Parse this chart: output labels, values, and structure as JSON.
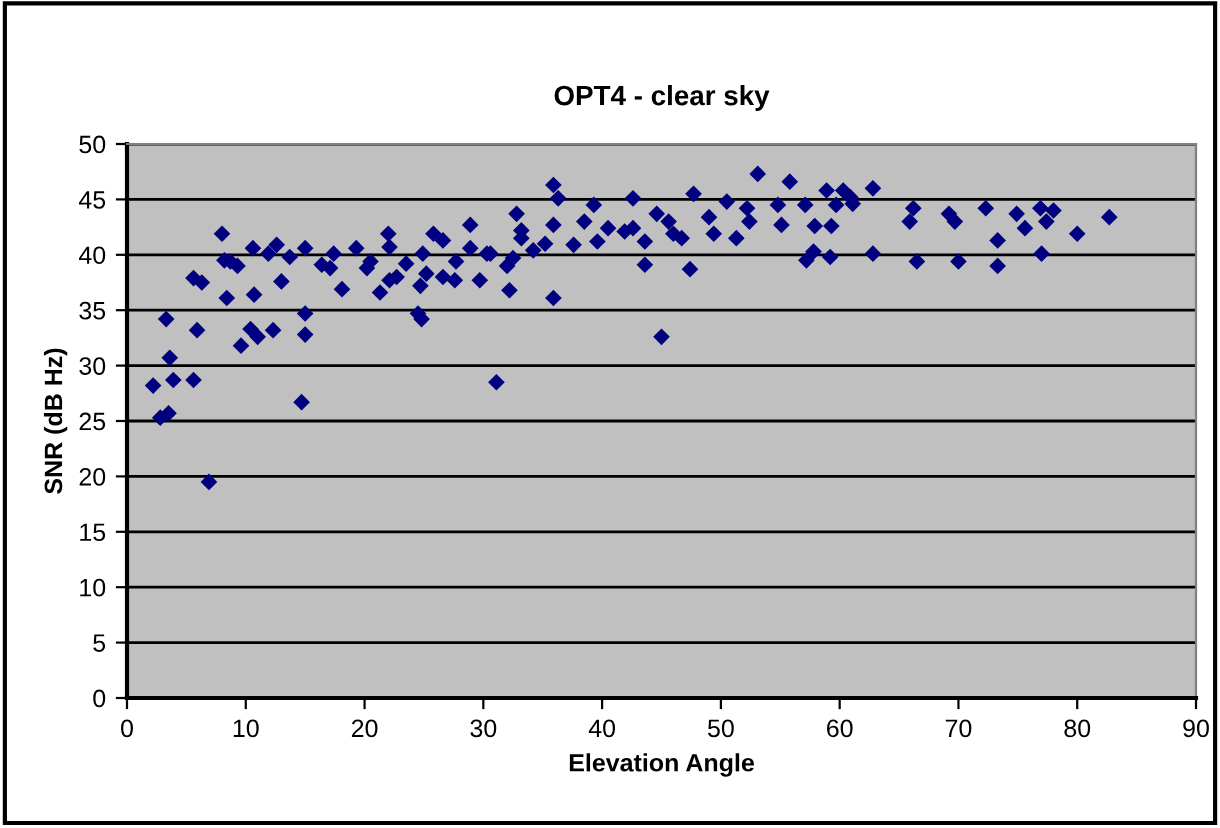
{
  "chart_data": {
    "type": "scatter",
    "title": "OPT4 - clear sky",
    "xlabel": "Elevation Angle",
    "ylabel": "SNR (dB Hz)",
    "xlim": [
      0,
      90
    ],
    "xticks": [
      0,
      10,
      20,
      30,
      40,
      50,
      60,
      70,
      80,
      90
    ],
    "ylim": [
      0,
      50
    ],
    "yticks": [
      0,
      5,
      10,
      15,
      20,
      25,
      30,
      35,
      40,
      45,
      50
    ],
    "grid": "y",
    "marker": "diamond",
    "series": [
      {
        "color": "#000080",
        "x": [
          2.2,
          2.8,
          3.5,
          3.3,
          3.6,
          3.9,
          5.6,
          5.6,
          6.3,
          5.9,
          6.9,
          8.0,
          8.2,
          8.7,
          9.3,
          8.4,
          9.6,
          10.4,
          11.0,
          10.6,
          10.7,
          11.9,
          12.6,
          12.3,
          13.0,
          13.7,
          15.0,
          15.0,
          15.0,
          14.7,
          16.4,
          17.1,
          17.4,
          18.1,
          19.3,
          20.2,
          20.5,
          21.3,
          22.0,
          22.1,
          22.1,
          22.7,
          23.5,
          24.5,
          24.8,
          24.7,
          24.9,
          25.2,
          25.8,
          26.6,
          26.6,
          27.6,
          27.7,
          28.9,
          28.9,
          29.7,
          30.3,
          30.6,
          31.1,
          32.2,
          32.0,
          32.5,
          32.8,
          33.2,
          33.2,
          34.2,
          35.2,
          35.9,
          36.3,
          35.9,
          35.9,
          37.6,
          38.5,
          39.3,
          39.6,
          40.5,
          41.9,
          42.6,
          42.6,
          43.6,
          43.6,
          44.6,
          45.0,
          45.6,
          46.0,
          46.7,
          47.4,
          47.7,
          49.0,
          49.4,
          50.5,
          51.3,
          52.2,
          52.4,
          53.1,
          54.8,
          55.1,
          55.8,
          57.1,
          57.2,
          57.8,
          57.9,
          58.9,
          59.2,
          59.3,
          59.7,
          60.3,
          60.9,
          61.1,
          62.8,
          62.8,
          66.2,
          65.9,
          66.5,
          69.2,
          69.7,
          70.0,
          72.3,
          73.3,
          73.3,
          74.9,
          75.6,
          76.9,
          77.0,
          77.4,
          78.0,
          80.0,
          82.7
        ],
        "values": [
          28.2,
          25.3,
          25.7,
          34.2,
          30.7,
          28.7,
          28.7,
          37.9,
          37.5,
          33.2,
          19.5,
          41.9,
          39.5,
          39.4,
          39.0,
          36.1,
          31.8,
          33.3,
          32.6,
          40.6,
          36.4,
          40.1,
          40.9,
          33.2,
          37.6,
          39.8,
          40.6,
          34.7,
          32.8,
          26.7,
          39.1,
          38.8,
          40.1,
          36.9,
          40.6,
          38.8,
          39.4,
          36.6,
          41.9,
          40.7,
          37.7,
          38.0,
          39.2,
          34.7,
          34.2,
          37.2,
          40.1,
          38.3,
          41.9,
          41.3,
          38.0,
          37.7,
          39.4,
          42.7,
          40.6,
          37.7,
          40.1,
          40.1,
          28.5,
          36.8,
          39.0,
          39.7,
          43.7,
          42.2,
          41.5,
          40.4,
          41.0,
          46.3,
          45.1,
          42.7,
          36.1,
          40.9,
          43.0,
          44.5,
          41.2,
          42.4,
          42.1,
          45.1,
          42.4,
          41.2,
          39.1,
          43.7,
          32.6,
          43.0,
          41.9,
          41.5,
          38.7,
          45.5,
          43.4,
          41.9,
          44.8,
          41.5,
          44.2,
          43.0,
          47.3,
          44.5,
          42.7,
          46.6,
          44.5,
          39.5,
          40.3,
          42.6,
          45.8,
          39.8,
          42.6,
          44.5,
          45.8,
          45.2,
          44.6,
          46.0,
          40.1,
          44.2,
          43.0,
          39.4,
          43.7,
          43.0,
          39.4,
          44.2,
          41.3,
          39.0,
          43.7,
          42.4,
          44.2,
          40.1,
          43.0,
          44.0,
          41.9,
          43.4
        ]
      }
    ]
  }
}
